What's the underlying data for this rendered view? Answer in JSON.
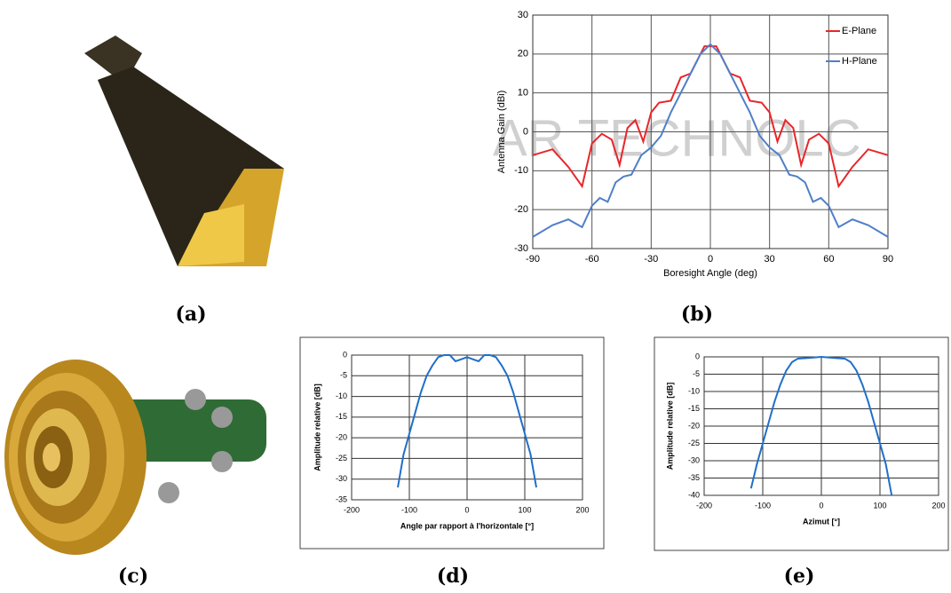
{
  "panel_labels": [
    "(a)",
    "(b)",
    "(c)",
    "(d)",
    "(e)"
  ],
  "watermark": "AR TECHNOLC",
  "chart_data": [
    {
      "type": "line",
      "xlabel": "Boresight Angle (deg)",
      "ylabel": "Antenna Gain (dBi)",
      "xlim": [
        -90,
        90
      ],
      "xticks": [
        -90,
        -60,
        -30,
        0,
        30,
        60,
        90
      ],
      "ylim": [
        -30,
        30
      ],
      "yticks": [
        -30,
        -20,
        -10,
        0,
        10,
        20,
        30
      ],
      "grid": true,
      "legend": "upper right",
      "series": [
        {
          "name": "E-Plane",
          "color": "#e8262a",
          "x": [
            -90,
            -80,
            -72,
            -65,
            -60,
            -55,
            -50,
            -46,
            -42,
            -38,
            -34,
            -30,
            -26,
            -20,
            -15,
            -10,
            -6,
            -3,
            0,
            3,
            6,
            10,
            15,
            20,
            26,
            30,
            34,
            38,
            42,
            46,
            50,
            55,
            60,
            65,
            72,
            80,
            90
          ],
          "values": [
            -6,
            -4.5,
            -9,
            -14,
            -3,
            -0.5,
            -2,
            -8.5,
            1,
            3,
            -2.5,
            5,
            7.5,
            8,
            14,
            15,
            19,
            22,
            22,
            22,
            19,
            15,
            14,
            8,
            7.5,
            5,
            -2.5,
            3,
            1,
            -8.5,
            -2,
            -0.5,
            -3,
            -14,
            -9,
            -4.5,
            -6
          ]
        },
        {
          "name": "H-Plane",
          "color": "#4f7fc8",
          "x": [
            -90,
            -80,
            -72,
            -65,
            -60,
            -56,
            -52,
            -48,
            -44,
            -40,
            -35,
            -30,
            -25,
            -20,
            -15,
            -10,
            -5,
            0,
            5,
            10,
            15,
            20,
            25,
            30,
            35,
            40,
            44,
            48,
            52,
            56,
            60,
            65,
            72,
            80,
            90
          ],
          "values": [
            -27,
            -24,
            -22.5,
            -24.5,
            -19,
            -17,
            -18,
            -13,
            -11.5,
            -11,
            -6,
            -4,
            -1,
            5,
            10,
            15,
            20,
            22.5,
            20,
            15,
            10,
            5,
            -1,
            -4,
            -6,
            -11,
            -11.5,
            -13,
            -18,
            -17,
            -19,
            -24.5,
            -22.5,
            -24,
            -27
          ]
        }
      ]
    },
    {
      "type": "line",
      "xlabel": "Angle par rapport à l'horizontale [°]",
      "ylabel": "Amplitude relative [dB]",
      "xlim": [
        -200,
        200
      ],
      "xticks": [
        -200,
        -100,
        0,
        100,
        200
      ],
      "ylim": [
        -35,
        0
      ],
      "yticks": [
        -35,
        -30,
        -25,
        -20,
        -15,
        -10,
        -5,
        0
      ],
      "grid": true,
      "color": "#1f6fc8",
      "x": [
        -120,
        -115,
        -110,
        -100,
        -90,
        -80,
        -70,
        -60,
        -50,
        -40,
        -30,
        -20,
        -10,
        0,
        10,
        20,
        30,
        40,
        50,
        60,
        70,
        80,
        90,
        100,
        110,
        115,
        120
      ],
      "values": [
        -32,
        -28,
        -24,
        -19,
        -14,
        -9,
        -5,
        -2.5,
        -0.5,
        0,
        0,
        -1.5,
        -1,
        -0.5,
        -1,
        -1.5,
        0,
        0,
        -0.5,
        -2.5,
        -5,
        -9,
        -14,
        -19,
        -24,
        -28,
        -32
      ]
    },
    {
      "type": "line",
      "xlabel": "Azimut [°]",
      "ylabel": "Amplitude relative [dB]",
      "xlim": [
        -200,
        200
      ],
      "xticks": [
        -200,
        -100,
        0,
        100,
        200
      ],
      "ylim": [
        -40,
        0
      ],
      "yticks": [
        -40,
        -35,
        -30,
        -25,
        -20,
        -15,
        -10,
        -5,
        0
      ],
      "grid": true,
      "color": "#1f6fc8",
      "x": [
        -120,
        -110,
        -100,
        -90,
        -80,
        -70,
        -60,
        -50,
        -40,
        -20,
        0,
        20,
        40,
        50,
        60,
        70,
        80,
        90,
        100,
        110,
        120
      ],
      "values": [
        -38,
        -31,
        -25,
        -19,
        -13,
        -8,
        -4,
        -1.5,
        -0.5,
        -0.3,
        0,
        -0.3,
        -0.5,
        -1.5,
        -4,
        -8,
        -13,
        -19,
        -25,
        -31,
        -40
      ]
    }
  ]
}
